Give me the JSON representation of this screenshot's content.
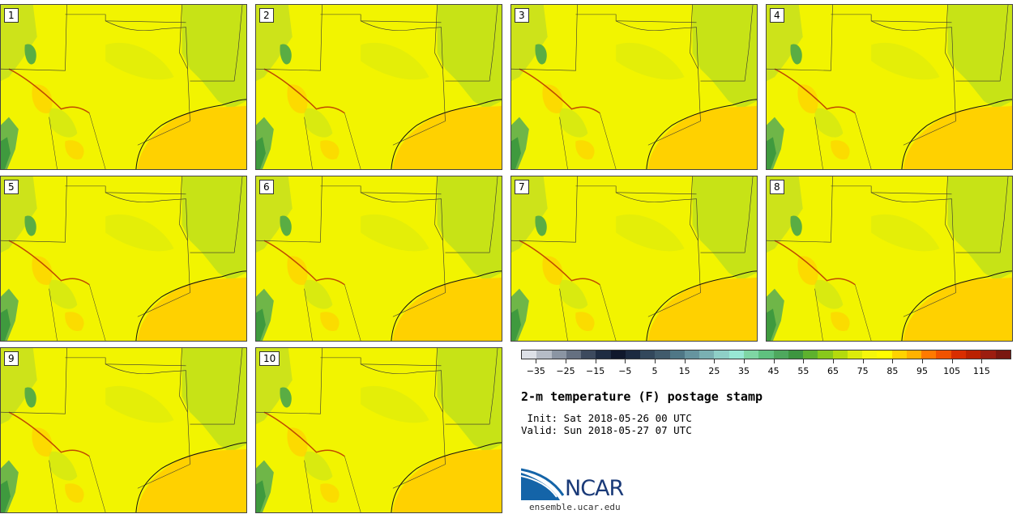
{
  "panels": [
    "1",
    "2",
    "3",
    "4",
    "5",
    "6",
    "7",
    "8",
    "9",
    "10"
  ],
  "colorbar": {
    "colors": [
      "#dde0e6",
      "#b6bcc6",
      "#8b95a3",
      "#657081",
      "#3d4a5e",
      "#1f2c42",
      "#10182c",
      "#1c2a40",
      "#33485c",
      "#415b6c",
      "#4f7786",
      "#66949f",
      "#7ab0b2",
      "#8fcfc7",
      "#98e8d4",
      "#7fd6a4",
      "#5fc17f",
      "#4ea85e",
      "#3d9640",
      "#5eb12e",
      "#88c91b",
      "#b4da0d",
      "#dceb0a",
      "#f5f70a",
      "#fffc00",
      "#ffd300",
      "#ffb200",
      "#ff7a00",
      "#f15300",
      "#d92e00",
      "#bb2200",
      "#9c1d10",
      "#7a1710"
    ],
    "tick_labels": [
      "−35",
      "−25",
      "−15",
      "−5",
      "5",
      "15",
      "25",
      "35",
      "45",
      "55",
      "65",
      "75",
      "85",
      "95",
      "105",
      "115"
    ]
  },
  "title": "2-m temperature (F) postage stamp",
  "init": " Init: Sat 2018-05-26 00 UTC",
  "valid": "Valid: Sun 2018-05-27 07 UTC",
  "logo_text": "NCAR",
  "url": "ensemble.ucar.edu"
}
